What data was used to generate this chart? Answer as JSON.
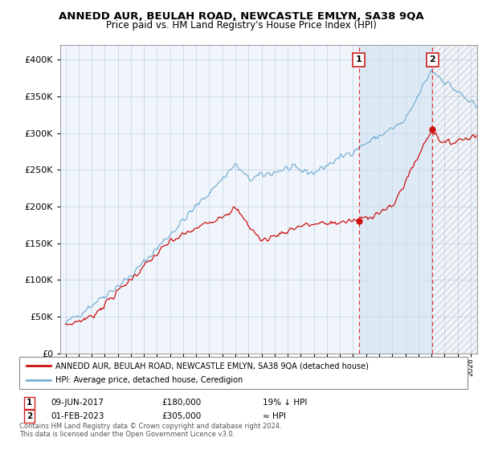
{
  "title": "ANNEDD AUR, BEULAH ROAD, NEWCASTLE EMLYN, SA38 9QA",
  "subtitle": "Price paid vs. HM Land Registry's House Price Index (HPI)",
  "ylim": [
    0,
    420000
  ],
  "yticks": [
    0,
    50000,
    100000,
    150000,
    200000,
    250000,
    300000,
    350000,
    400000
  ],
  "hpi_color": "#7ab0d4",
  "price_color": "#cc1111",
  "vline_color": "#dd3333",
  "bg_color": "#ffffff",
  "chart_bg": "#f0f5fb",
  "grid_color": "#c8d8e8",
  "legend_label_hpi": "HPI: Average price, detached house, Ceredigion",
  "legend_label_price": "ANNEDD AUR, BEULAH ROAD, NEWCASTLE EMLYN, SA38 9QA (detached house)",
  "annotation1_label": "1",
  "annotation1_date": "09-JUN-2017",
  "annotation1_price": "£180,000",
  "annotation1_note": "19% ↓ HPI",
  "annotation1_year": 2017.44,
  "annotation1_value": 180000,
  "annotation2_label": "2",
  "annotation2_date": "01-FEB-2023",
  "annotation2_price": "£305,000",
  "annotation2_note": "≈ HPI",
  "annotation2_year": 2023.08,
  "annotation2_value": 305000,
  "footer1": "Contains HM Land Registry data © Crown copyright and database right 2024.",
  "footer2": "This data is licensed under the Open Government Licence v3.0."
}
